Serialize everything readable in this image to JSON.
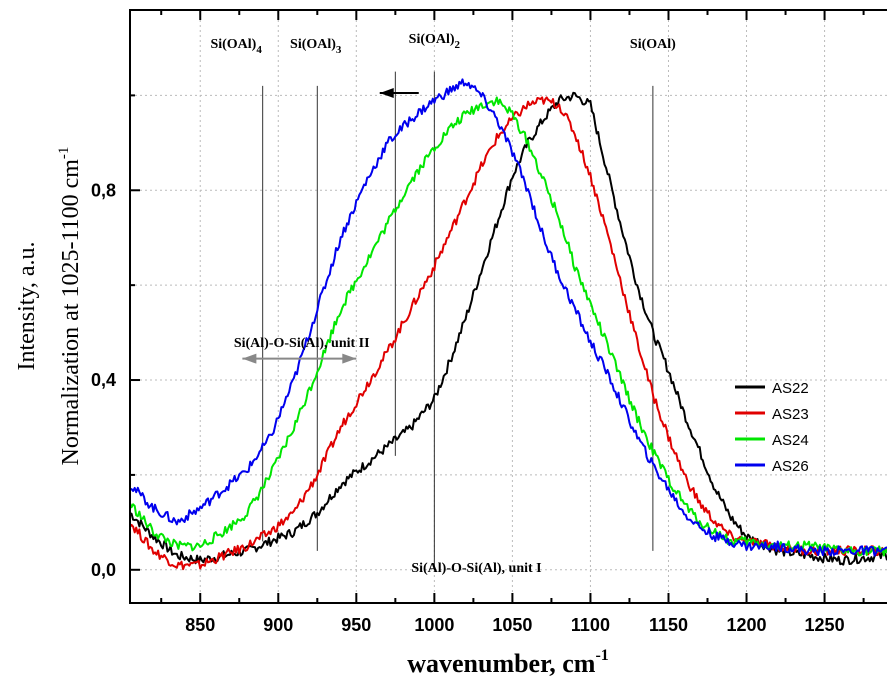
{
  "chart_data": {
    "type": "line",
    "xlabel": "wavenumber, cm",
    "xlabel_sup": "-1",
    "ylabel_line1": "Intensity, a.u.",
    "ylabel_line2": "Normalization at 1025-1100 cm",
    "ylabel_sup": "-1",
    "xlim": [
      805,
      1290
    ],
    "ylim": [
      -0.07,
      1.18
    ],
    "xticks": [
      850,
      900,
      950,
      1000,
      1050,
      1100,
      1150,
      1200,
      1250
    ],
    "xtick_labels": [
      "850",
      "900",
      "950",
      "1000",
      "1050",
      "1100",
      "1150",
      "1200",
      "1250"
    ],
    "yticks": [
      0.0,
      0.4,
      0.8
    ],
    "ytick_labels": [
      "0,0",
      "0,4",
      "0,8"
    ],
    "grid": true,
    "legend_position": "right-middle",
    "series": [
      {
        "name": "AS22",
        "color": "#000000",
        "x": [
          805,
          820,
          835,
          850,
          865,
          880,
          895,
          910,
          925,
          940,
          955,
          970,
          985,
          1000,
          1010,
          1020,
          1030,
          1040,
          1050,
          1060,
          1070,
          1080,
          1090,
          1100,
          1110,
          1120,
          1130,
          1140,
          1150,
          1160,
          1170,
          1180,
          1190,
          1200,
          1220,
          1240,
          1260,
          1290
        ],
        "y": [
          0.12,
          0.07,
          0.03,
          0.02,
          0.03,
          0.04,
          0.06,
          0.08,
          0.12,
          0.18,
          0.22,
          0.26,
          0.3,
          0.36,
          0.44,
          0.53,
          0.63,
          0.73,
          0.83,
          0.9,
          0.95,
          0.99,
          1.0,
          0.98,
          0.85,
          0.72,
          0.6,
          0.5,
          0.42,
          0.33,
          0.25,
          0.17,
          0.11,
          0.07,
          0.04,
          0.03,
          0.02,
          0.03
        ]
      },
      {
        "name": "AS23",
        "color": "#e00000",
        "x": [
          805,
          820,
          835,
          850,
          865,
          880,
          895,
          910,
          925,
          940,
          955,
          970,
          985,
          1000,
          1010,
          1020,
          1030,
          1040,
          1050,
          1060,
          1070,
          1080,
          1090,
          1100,
          1110,
          1120,
          1130,
          1140,
          1150,
          1160,
          1170,
          1180,
          1190,
          1200,
          1220,
          1240,
          1260,
          1290
        ],
        "y": [
          0.1,
          0.04,
          0.01,
          0.01,
          0.03,
          0.05,
          0.08,
          0.12,
          0.2,
          0.3,
          0.38,
          0.46,
          0.55,
          0.64,
          0.71,
          0.78,
          0.85,
          0.91,
          0.95,
          0.98,
          0.99,
          0.98,
          0.92,
          0.83,
          0.72,
          0.6,
          0.48,
          0.37,
          0.28,
          0.2,
          0.14,
          0.1,
          0.07,
          0.06,
          0.05,
          0.04,
          0.04,
          0.04
        ]
      },
      {
        "name": "AS24",
        "color": "#00e600",
        "x": [
          805,
          820,
          835,
          850,
          865,
          880,
          895,
          910,
          925,
          940,
          955,
          970,
          985,
          1000,
          1010,
          1020,
          1030,
          1040,
          1050,
          1060,
          1070,
          1080,
          1090,
          1100,
          1110,
          1120,
          1130,
          1140,
          1150,
          1160,
          1170,
          1180,
          1190,
          1200,
          1220,
          1240,
          1260,
          1290
        ],
        "y": [
          0.14,
          0.08,
          0.05,
          0.05,
          0.08,
          0.12,
          0.2,
          0.3,
          0.42,
          0.55,
          0.64,
          0.73,
          0.82,
          0.89,
          0.93,
          0.96,
          0.98,
          0.99,
          0.96,
          0.9,
          0.82,
          0.74,
          0.64,
          0.56,
          0.48,
          0.4,
          0.32,
          0.25,
          0.19,
          0.14,
          0.1,
          0.08,
          0.06,
          0.06,
          0.05,
          0.05,
          0.04,
          0.04
        ]
      },
      {
        "name": "AS26",
        "color": "#0000ee",
        "x": [
          805,
          820,
          835,
          850,
          865,
          880,
          895,
          910,
          925,
          940,
          955,
          970,
          985,
          1000,
          1010,
          1020,
          1030,
          1040,
          1050,
          1060,
          1070,
          1080,
          1090,
          1100,
          1110,
          1120,
          1130,
          1140,
          1150,
          1160,
          1170,
          1180,
          1190,
          1200,
          1220,
          1240,
          1260,
          1290
        ],
        "y": [
          0.18,
          0.13,
          0.1,
          0.13,
          0.17,
          0.21,
          0.28,
          0.4,
          0.55,
          0.7,
          0.81,
          0.9,
          0.95,
          0.99,
          1.01,
          1.03,
          1.0,
          0.95,
          0.88,
          0.8,
          0.7,
          0.62,
          0.55,
          0.48,
          0.42,
          0.35,
          0.28,
          0.22,
          0.17,
          0.12,
          0.09,
          0.07,
          0.06,
          0.05,
          0.05,
          0.04,
          0.04,
          0.04
        ]
      }
    ],
    "vertical_lines": [
      {
        "x": 890,
        "y_top": 1.02,
        "y_bottom": 0.06
      },
      {
        "x": 925,
        "y_top": 1.02,
        "y_bottom": 0.04
      },
      {
        "x": 975,
        "y_top": 1.05,
        "y_bottom": 0.24
      },
      {
        "x": 1000,
        "y_top": 1.05,
        "y_bottom": 0.0
      },
      {
        "x": 1140,
        "y_top": 1.02,
        "y_bottom": 0.04
      }
    ],
    "annotations": [
      {
        "id": "oal4",
        "main": "Si(OAl)",
        "sub": "4",
        "x": 873,
        "y": 1.1
      },
      {
        "id": "oal3",
        "main": "Si(OAl)",
        "sub": "3",
        "x": 924,
        "y": 1.1
      },
      {
        "id": "oal2",
        "main": "Si(OAl)",
        "sub": "2",
        "x": 1000,
        "y": 1.11
      },
      {
        "id": "oal1",
        "main": "Si(OAl)",
        "sub": "",
        "x": 1140,
        "y": 1.1
      },
      {
        "id": "unit2",
        "main": "Si(Al)-O-Si(Al), unit II",
        "sub": "",
        "x": 915,
        "y": 0.47
      },
      {
        "id": "unit1",
        "main": "Si(Al)-O-Si(Al), unit I",
        "sub": "",
        "x": 1027,
        "y": -0.005
      }
    ],
    "arrows": [
      {
        "id": "black-arrow",
        "color": "#000000",
        "x_from": 990,
        "x_to": 965,
        "y": 1.005,
        "double": false
      },
      {
        "id": "grey-arrow",
        "color": "#888888",
        "x_from": 877,
        "x_to": 950,
        "y": 0.445,
        "double": true
      }
    ]
  }
}
